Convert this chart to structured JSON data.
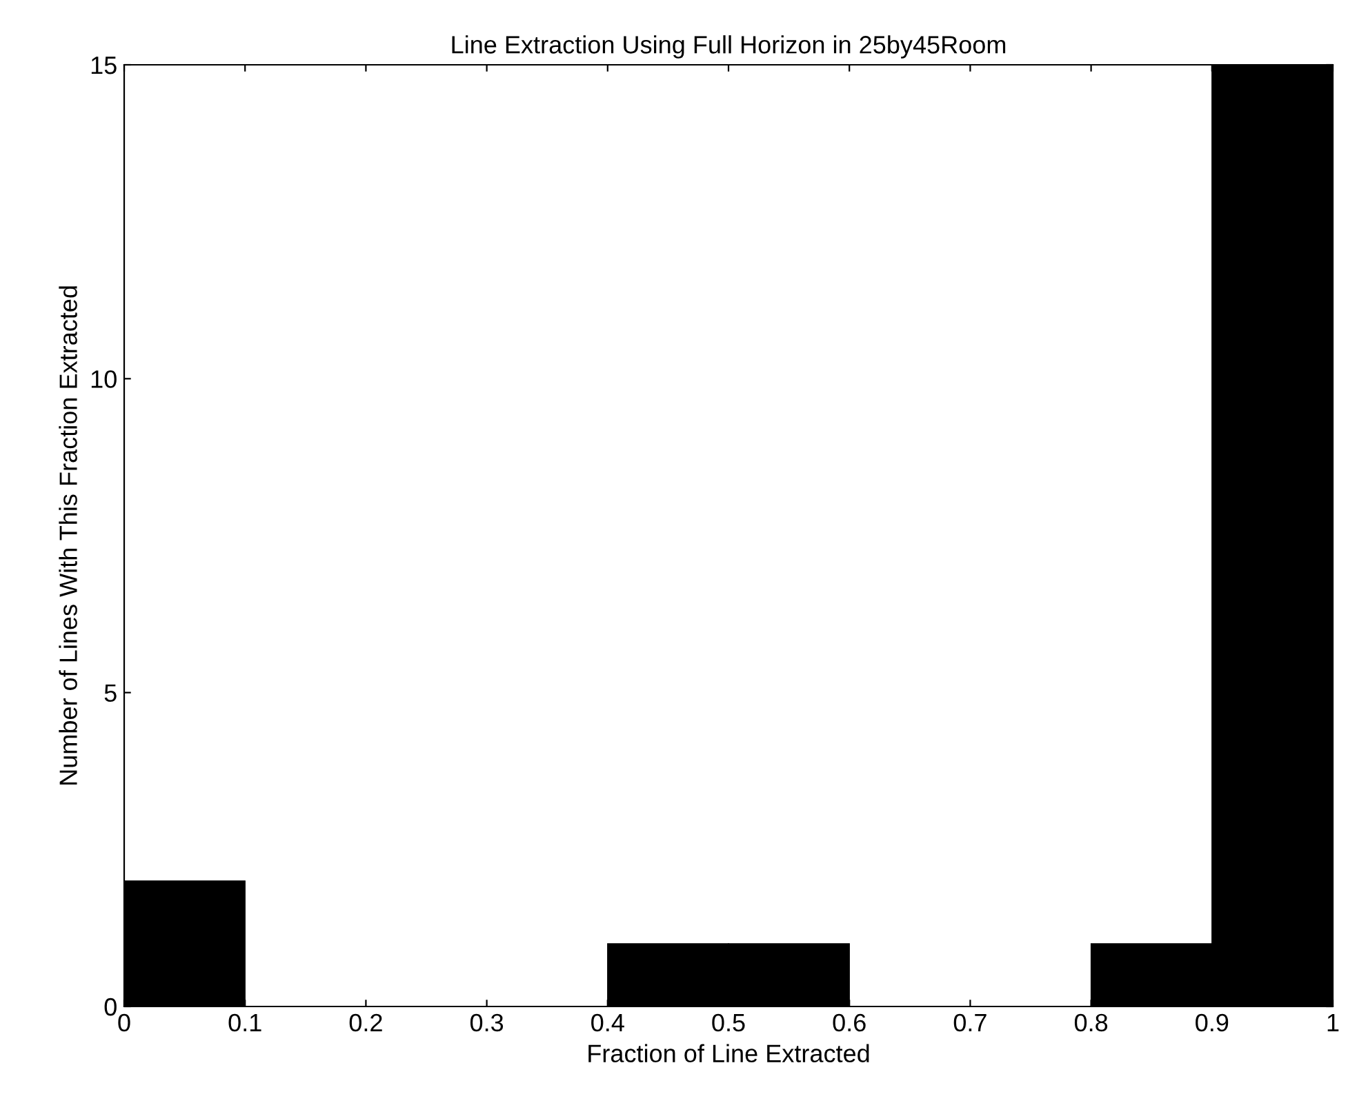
{
  "chart_data": {
    "type": "histogram",
    "title": "Line Extraction Using Full Horizon in 25by45Room",
    "xlabel": "Fraction of Line Extracted",
    "ylabel": "Number of Lines With This Fraction Extracted",
    "bins": [
      0,
      0.1,
      0.2,
      0.3,
      0.4,
      0.5,
      0.6,
      0.7,
      0.8,
      0.9,
      1
    ],
    "values": [
      2,
      0,
      0,
      0,
      1,
      1,
      0,
      0,
      1,
      15
    ],
    "color": "#000000",
    "xlim": [
      0,
      1
    ],
    "xticks": [
      0,
      0.1,
      0.2,
      0.3,
      0.4,
      0.5,
      0.6,
      0.7,
      0.8,
      0.9,
      1
    ],
    "ylim": [
      0,
      15
    ],
    "yticks": [
      0,
      5,
      10,
      15
    ]
  }
}
